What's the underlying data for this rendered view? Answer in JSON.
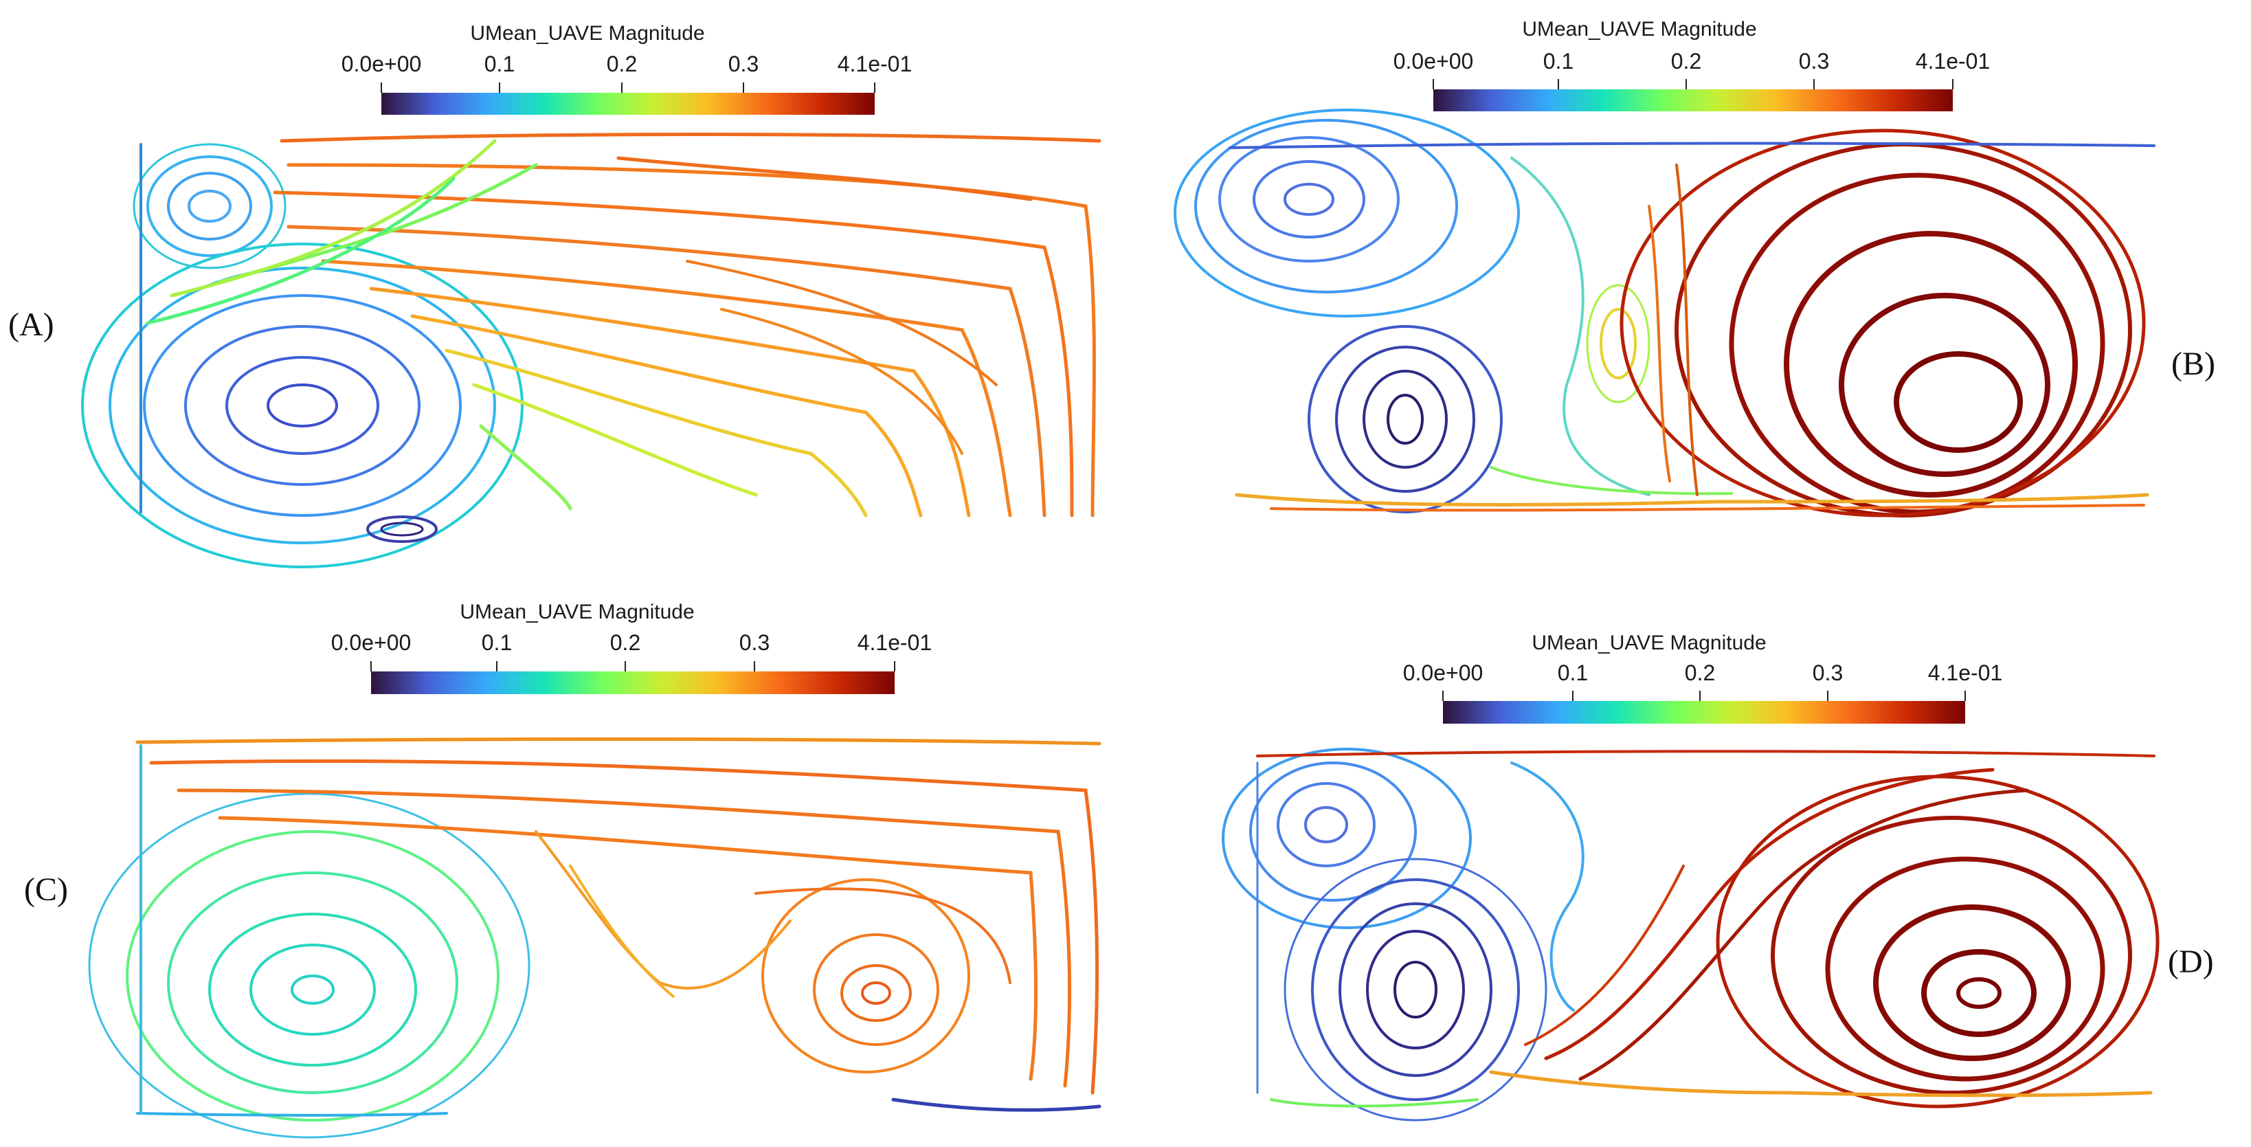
{
  "figure": {
    "colorbar_title": "UMean_UAVE Magnitude",
    "colorbar_ticks": [
      "0.0e+00",
      "0.1",
      "0.2",
      "0.3",
      "4.1e-01"
    ],
    "colormap": [
      "#30123b",
      "#4662d7",
      "#36aaf9",
      "#1ae4b6",
      "#72fe5e",
      "#c7ef34",
      "#fabd24",
      "#f66b19",
      "#cb2a04",
      "#7a0403"
    ],
    "panels": [
      {
        "id": "A",
        "label": "(A)",
        "description_vortices": 3
      },
      {
        "id": "B",
        "label": "(B)",
        "description_vortices": 4
      },
      {
        "id": "C",
        "label": "(C)",
        "description_vortices": 2
      },
      {
        "id": "D",
        "label": "(D)",
        "description_vortices": 3
      }
    ]
  }
}
